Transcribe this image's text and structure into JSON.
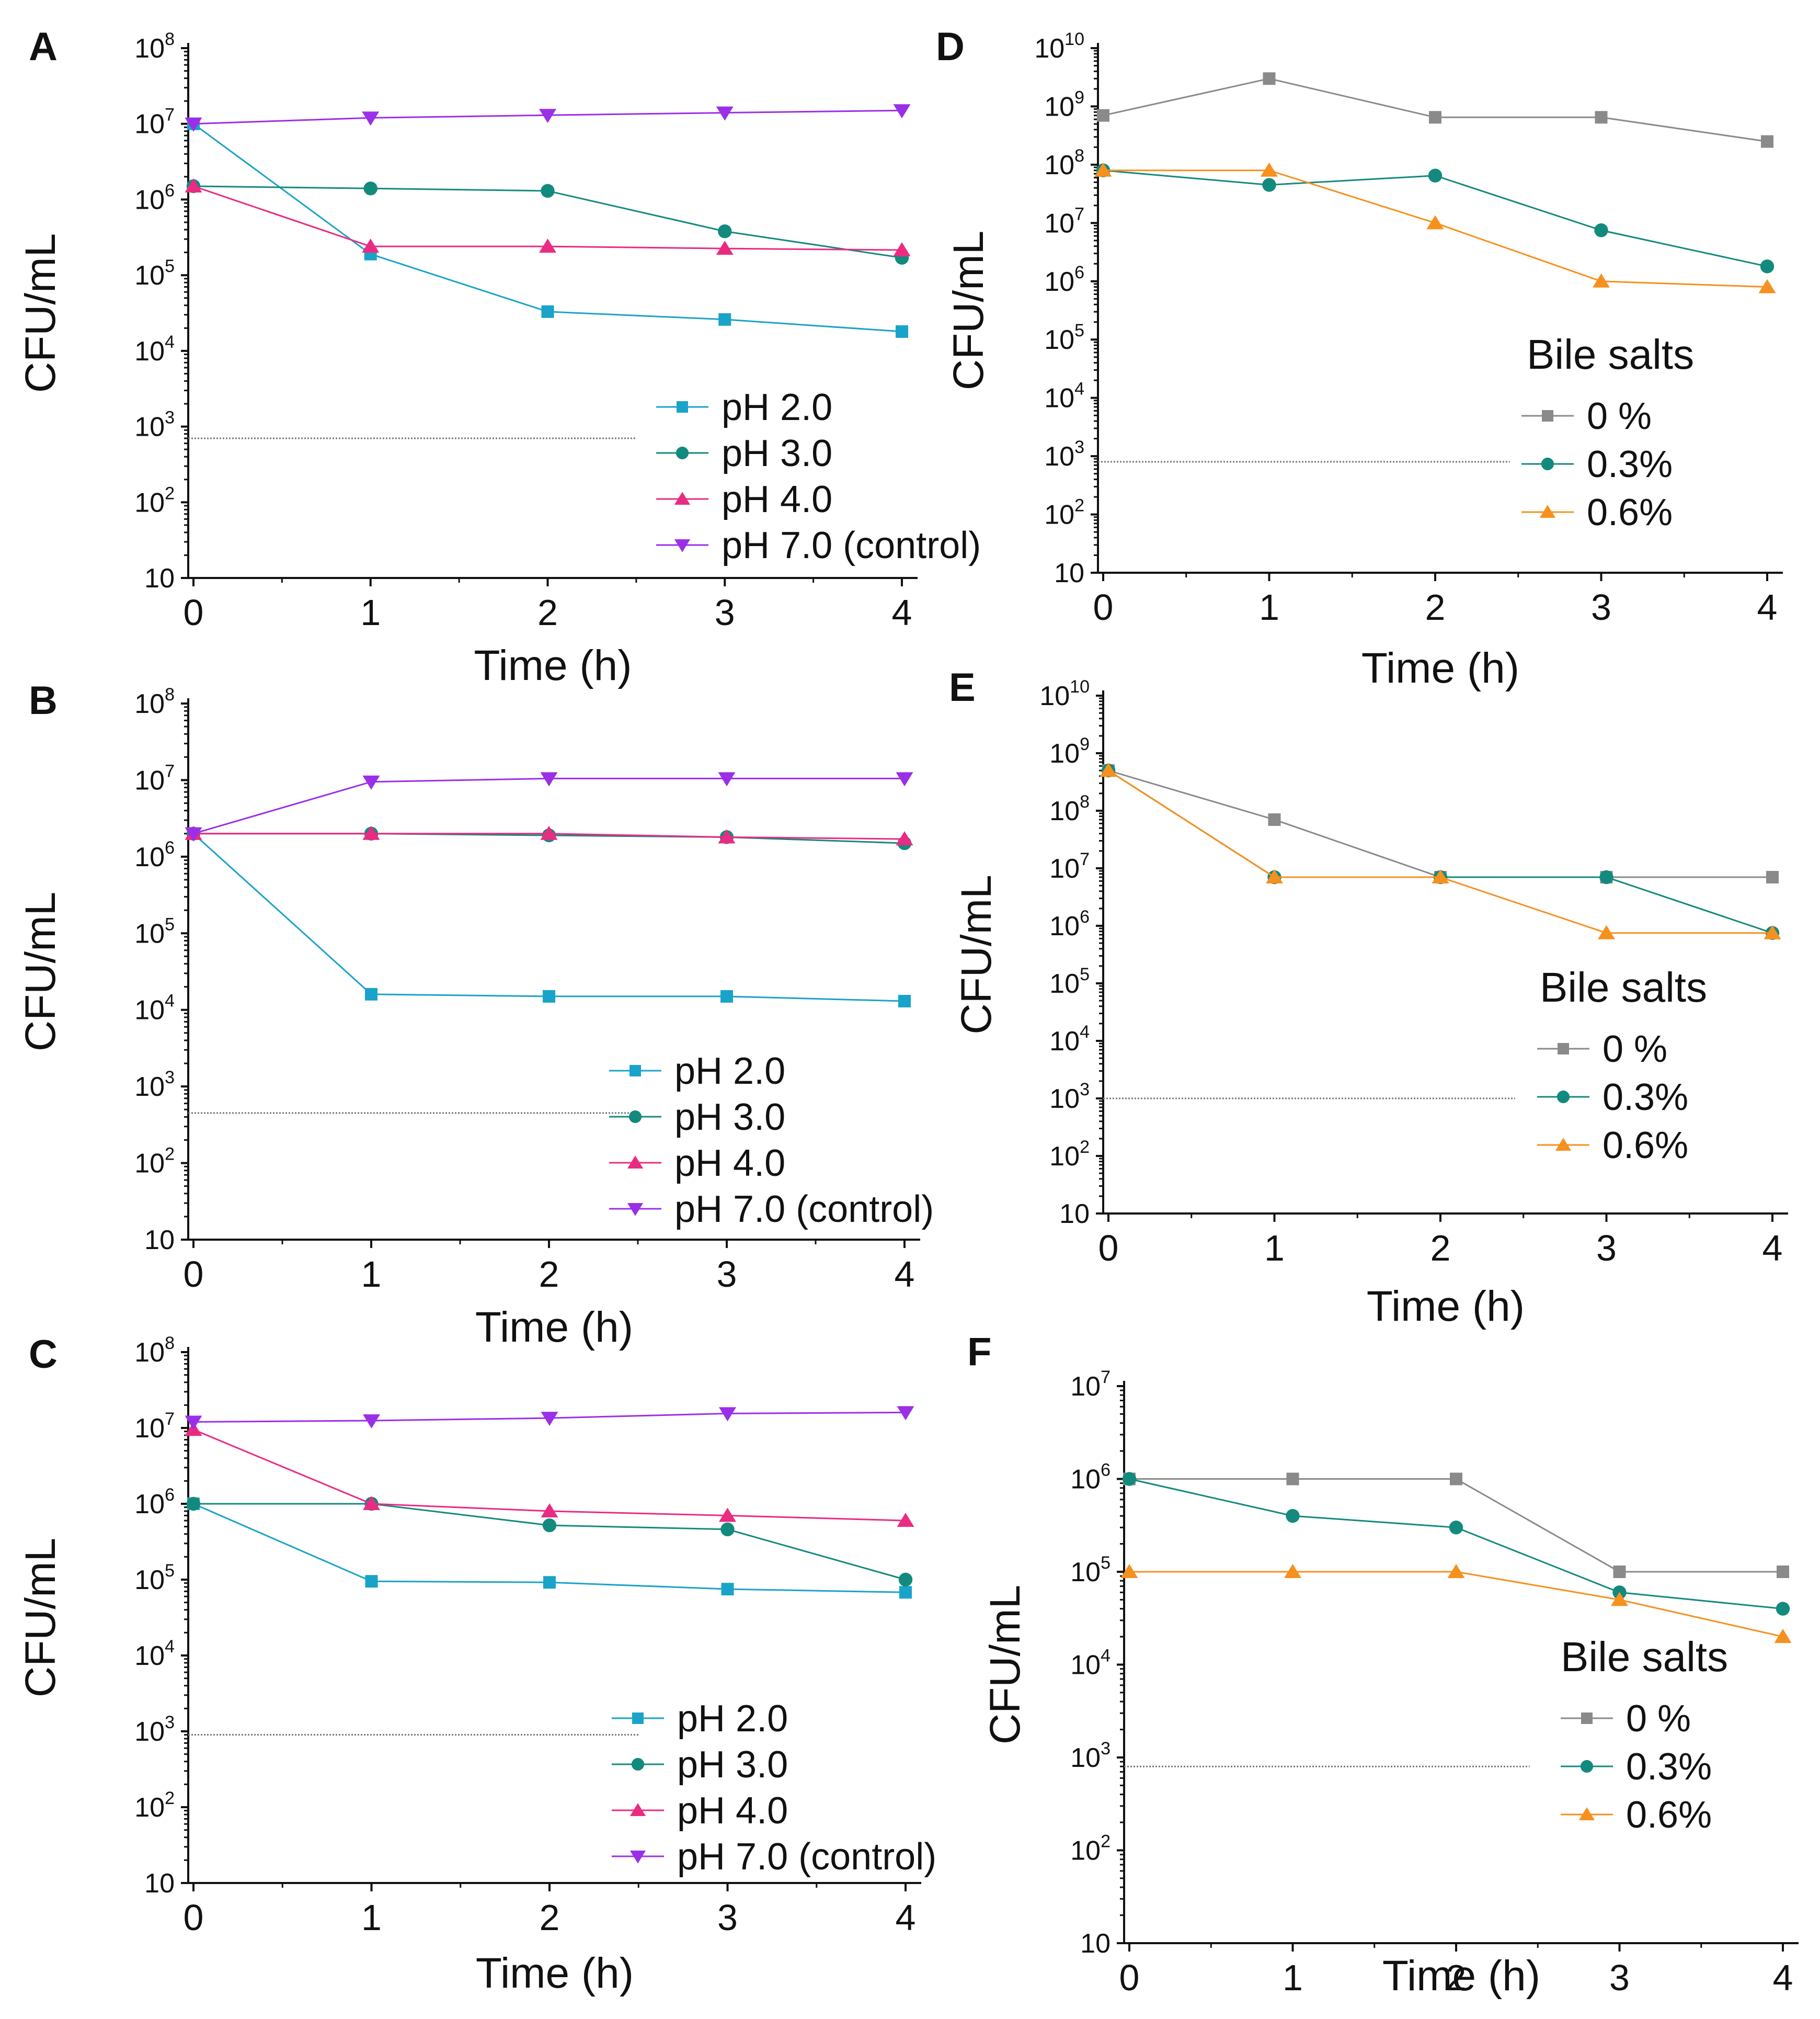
{
  "colors": {
    "pH 2.0": "#1aa3c9",
    "pH 3.0": "#138a7e",
    "pH 4.0": "#ea2b82",
    "pH 7.0": "#9b2fe8",
    "0 %": "#8a8a8a",
    "0.3%": "#138a7e",
    "0.6%": "#f6901e",
    "detection_limit": "#777777",
    "axis": "#111111"
  },
  "chart_data": [
    {
      "panel": "A",
      "type": "line",
      "xlabel": "Time (h)",
      "ylabel": "CFU/mL",
      "x": [
        0,
        1,
        2,
        3,
        4
      ],
      "ylog": true,
      "ylim_exp": [
        1,
        8
      ],
      "legend_title": "",
      "detection_limit": 700,
      "detection_limit_x_end": 2.5,
      "series": [
        {
          "name": "pH 2.0",
          "marker": "square",
          "values": [
            10000000,
            190000,
            33000,
            26000,
            18000
          ]
        },
        {
          "name": "pH 3.0",
          "marker": "circle",
          "values": [
            1500000,
            1400000,
            1300000,
            380000,
            170000
          ]
        },
        {
          "name": "pH 4.0",
          "marker": "triangle-up",
          "values": [
            1500000,
            240000,
            240000,
            225000,
            215000
          ]
        },
        {
          "name": "pH 7.0 (control)",
          "color_key": "pH 7.0",
          "marker": "triangle-down",
          "values": [
            10000000,
            12000000,
            13000000,
            14000000,
            15000000
          ]
        }
      ]
    },
    {
      "panel": "B",
      "type": "line",
      "xlabel": "Time (h)",
      "ylabel": "CFU/mL",
      "x": [
        0,
        1,
        2,
        3,
        4
      ],
      "ylog": true,
      "ylim_exp": [
        1,
        8
      ],
      "legend_title": "",
      "detection_limit": 450,
      "detection_limit_x_end": 2.5,
      "series": [
        {
          "name": "pH 2.0",
          "marker": "square",
          "values": [
            2000000,
            16000,
            15000,
            15000,
            13000
          ]
        },
        {
          "name": "pH 3.0",
          "marker": "circle",
          "values": [
            2000000,
            2000000,
            1900000,
            1800000,
            1500000
          ]
        },
        {
          "name": "pH 4.0",
          "marker": "triangle-up",
          "values": [
            2000000,
            2000000,
            2000000,
            1800000,
            1700000
          ]
        },
        {
          "name": "pH 7.0 (control)",
          "color_key": "pH 7.0",
          "marker": "triangle-down",
          "values": [
            2000000,
            9500000,
            10500000,
            10500000,
            10500000
          ]
        }
      ]
    },
    {
      "panel": "C",
      "type": "line",
      "xlabel": "Time (h)",
      "ylabel": "CFU/mL",
      "x": [
        0,
        1,
        2,
        3,
        4
      ],
      "ylog": true,
      "ylim_exp": [
        1,
        8
      ],
      "legend_title": "",
      "detection_limit": 900,
      "detection_limit_x_end": 2.5,
      "series": [
        {
          "name": "pH 2.0",
          "marker": "square",
          "values": [
            1000000,
            95000,
            92000,
            75000,
            68000
          ]
        },
        {
          "name": "pH 3.0",
          "marker": "circle",
          "values": [
            1000000,
            1000000,
            520000,
            460000,
            100000
          ]
        },
        {
          "name": "pH 4.0",
          "marker": "triangle-up",
          "values": [
            9500000,
            1000000,
            800000,
            700000,
            600000
          ]
        },
        {
          "name": "pH 7.0 (control)",
          "color_key": "pH 7.0",
          "marker": "triangle-down",
          "values": [
            12000000,
            12500000,
            13500000,
            15500000,
            16000000
          ]
        }
      ]
    },
    {
      "panel": "D",
      "type": "line",
      "xlabel": "Time (h)",
      "ylabel": "CFU/mL",
      "x": [
        0,
        1,
        2,
        3,
        4
      ],
      "ylog": true,
      "ylim_exp": [
        1,
        10
      ],
      "legend_title": "Bile salts",
      "detection_limit": 800,
      "detection_limit_x_end": 2.45,
      "series": [
        {
          "name": "0 %",
          "marker": "square",
          "values": [
            700000000,
            3000000000,
            650000000,
            650000000,
            250000000
          ]
        },
        {
          "name": "0.3%",
          "marker": "circle",
          "values": [
            80000000,
            45000000,
            65000000,
            7500000,
            1800000
          ]
        },
        {
          "name": "0.6%",
          "marker": "triangle-up",
          "values": [
            80000000,
            80000000,
            10000000,
            1000000,
            800000
          ]
        }
      ]
    },
    {
      "panel": "E",
      "type": "line",
      "xlabel": "Time (h)",
      "ylabel": "CFU/mL",
      "x": [
        0,
        1,
        2,
        3,
        4
      ],
      "ylog": true,
      "ylim_exp": [
        1,
        10
      ],
      "legend_title": "Bile salts",
      "detection_limit": 1000,
      "detection_limit_x_end": 2.45,
      "series": [
        {
          "name": "0 %",
          "marker": "square",
          "values": [
            500000000,
            70000000,
            7000000,
            7000000,
            7000000
          ]
        },
        {
          "name": "0.3%",
          "marker": "circle",
          "values": [
            500000000,
            7000000,
            7000000,
            7000000,
            750000
          ]
        },
        {
          "name": "0.6%",
          "marker": "triangle-up",
          "values": [
            500000000,
            7000000,
            7000000,
            750000,
            750000
          ]
        }
      ]
    },
    {
      "panel": "F",
      "type": "line",
      "xlabel": "Time (h)",
      "ylabel": "CFU/mL",
      "x": [
        0,
        1,
        2,
        3,
        4
      ],
      "ylog": true,
      "ylim_exp": [
        1,
        7
      ],
      "legend_title": "Bile salts",
      "detection_limit": 800,
      "detection_limit_x_end": 2.45,
      "series": [
        {
          "name": "0 %",
          "marker": "square",
          "values": [
            1000000,
            1000000,
            1000000,
            100000,
            100000
          ]
        },
        {
          "name": "0.3%",
          "marker": "circle",
          "values": [
            1000000,
            400000,
            300000,
            60000,
            40000
          ]
        },
        {
          "name": "0.6%",
          "marker": "triangle-up",
          "values": [
            100000,
            100000,
            100000,
            50000,
            20000
          ]
        }
      ]
    }
  ]
}
